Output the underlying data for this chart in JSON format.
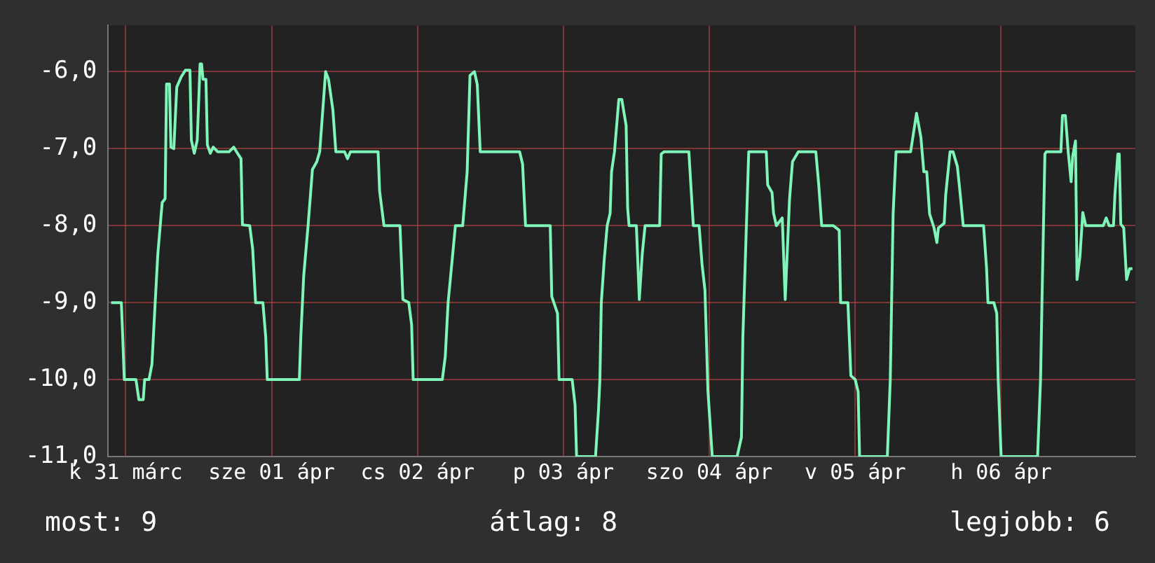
{
  "chart_data": {
    "type": "line",
    "color": "#7ff5b9",
    "marker": "none",
    "line_style": "solid",
    "grid": true,
    "legend": false,
    "x": [
      "--03-30T21:36",
      "--03-30T23:17",
      "--03-30T23:31",
      "--03-30T23:46",
      "--03-31T01:41",
      "--03-31T02:10",
      "--03-31T02:53",
      "--03-31T03:07",
      "--03-31T03:50",
      "--03-31T04:19",
      "--03-31T04:48",
      "--03-31T05:17",
      "--03-31T06:00",
      "--03-31T06:29",
      "--03-31T06:43",
      "--03-31T07:12",
      "--03-31T07:26",
      "--03-31T07:55",
      "--03-31T08:24",
      "--03-31T09:07",
      "--03-31T09:50",
      "--03-31T10:34",
      "--03-31T10:48",
      "--03-31T11:17",
      "--03-31T11:46",
      "--03-31T12:14",
      "--03-31T12:29",
      "--03-31T12:43",
      "--03-31T13:12",
      "--03-31T13:26",
      "--03-31T13:55",
      "--03-31T14:24",
      "--03-31T15:07",
      "--03-31T17:02",
      "--03-31T17:46",
      "--03-31T18:14",
      "--03-31T18:58",
      "--03-31T19:12",
      "--03-31T20:24",
      "--03-31T20:53",
      "--03-31T21:22",
      "--03-31T22:34",
      "--03-31T23:02",
      "--03-31T23:17",
      "--04-01T04:34",
      "--04-01T04:48",
      "--04-01T05:17",
      "--04-01T06:00",
      "--04-01T06:43",
      "--04-01T07:26",
      "--04-01T07:55",
      "--04-01T08:53",
      "--04-01T09:22",
      "--04-01T10:05",
      "--04-01T10:34",
      "--04-01T12:00",
      "--04-01T12:29",
      "--04-01T12:58",
      "--04-01T17:31",
      "--04-01T17:46",
      "--04-01T18:29",
      "--04-01T21:07",
      "--04-01T21:36",
      "--04-01T22:34",
      "--04-01T23:02",
      "--04-01T23:17",
      "--04-02T04:05",
      "--04-02T04:34",
      "--04-02T05:02",
      "--04-02T05:31",
      "--04-02T06:14",
      "--04-02T07:26",
      "--04-02T08:10",
      "--04-02T08:38",
      "--04-02T09:22",
      "--04-02T09:50",
      "--04-02T10:19",
      "--04-02T16:48",
      "--04-02T17:17",
      "--04-02T17:46",
      "--04-02T21:50",
      "--04-02T22:05",
      "--04-02T23:02",
      "--04-02T23:17",
      "--04-03T01:26",
      "--04-03T01:55",
      "--04-03T02:10",
      "--04-03T05:17",
      "--04-03T05:46",
      "--04-03T06:00",
      "--04-03T06:14",
      "--04-03T06:43",
      "--04-03T07:12",
      "--04-03T07:41",
      "--04-03T07:55",
      "--04-03T08:24",
      "--04-03T09:07",
      "--04-03T09:36",
      "--04-03T10:19",
      "--04-03T10:34",
      "--04-03T10:48",
      "--04-03T12:00",
      "--04-03T12:29",
      "--04-03T12:58",
      "--04-03T13:26",
      "--04-03T15:50",
      "--04-03T16:05",
      "--04-03T16:34",
      "--04-03T20:38",
      "--04-03T21:22",
      "--04-03T22:19",
      "--04-03T22:48",
      "--04-03T23:17",
      "--04-03T23:46",
      "--04-04T00:29",
      "--04-04T04:34",
      "--04-04T05:17",
      "--04-04T05:31",
      "--04-04T06:00",
      "--04-04T06:29",
      "--04-04T09:22",
      "--04-04T09:36",
      "--04-04T10:19",
      "--04-04T10:34",
      "--04-04T11:02",
      "--04-04T12:00",
      "--04-04T12:29",
      "--04-04T13:12",
      "--04-04T13:41",
      "--04-04T14:38",
      "--04-04T17:31",
      "--04-04T18:00",
      "--04-04T18:29",
      "--04-04T20:24",
      "--04-04T21:22",
      "--04-04T21:36",
      "--04-04T22:48",
      "--04-04T23:17",
      "--04-05T00:00",
      "--04-05T00:29",
      "--04-05T00:43",
      "--04-05T05:17",
      "--04-05T05:46",
      "--04-05T06:14",
      "--04-05T06:43",
      "--04-05T09:07",
      "--04-05T10:05",
      "--04-05T10:48",
      "--04-05T11:17",
      "--04-05T11:46",
      "--04-05T12:14",
      "--04-05T12:58",
      "--04-05T13:26",
      "--04-05T13:41",
      "--04-05T14:38",
      "--04-05T14:53",
      "--04-05T15:36",
      "--04-05T16:05",
      "--04-05T16:48",
      "--04-05T17:17",
      "--04-05T17:46",
      "--04-05T21:07",
      "--04-05T21:36",
      "--04-05T21:50",
      "--04-05T22:48",
      "--04-05T23:17",
      "--04-05T23:31",
      "--04-06T00:00",
      "--04-06T06:00",
      "--04-06T06:29",
      "--04-06T06:43",
      "--04-06T07:12",
      "--04-06T07:26",
      "--04-06T09:50",
      "--04-06T10:05",
      "--04-06T10:34",
      "--04-06T11:02",
      "--04-06T11:31",
      "--04-06T11:46",
      "--04-06T12:14",
      "--04-06T12:29",
      "--04-06T12:58",
      "--04-06T13:26",
      "--04-06T13:55",
      "--04-06T16:48",
      "--04-06T17:17",
      "--04-06T17:46",
      "--04-06T18:29",
      "--04-06T18:43",
      "--04-06T19:12",
      "--04-06T19:26",
      "--04-06T19:41",
      "--04-06T20:10",
      "--04-06T20:38",
      "--04-06T21:07",
      "--04-06T21:36"
    ],
    "values": [
      -9.0,
      -9.0,
      -9.46,
      -10.0,
      -10.0,
      -10.26,
      -10.26,
      -10.0,
      -10.0,
      -9.8,
      -9.07,
      -8.37,
      -7.7,
      -7.65,
      -6.16,
      -6.16,
      -6.98,
      -7.0,
      -6.2,
      -6.07,
      -5.98,
      -5.98,
      -6.89,
      -7.06,
      -6.89,
      -5.9,
      -5.9,
      -6.1,
      -6.1,
      -6.95,
      -7.06,
      -6.98,
      -7.04,
      -7.04,
      -6.98,
      -7.04,
      -7.13,
      -7.99,
      -8.0,
      -8.3,
      -9.0,
      -9.0,
      -9.45,
      -10.0,
      -10.0,
      -9.45,
      -8.65,
      -8.0,
      -7.27,
      -7.17,
      -7.04,
      -6.0,
      -6.1,
      -6.5,
      -7.04,
      -7.04,
      -7.13,
      -7.04,
      -7.04,
      -7.55,
      -8.0,
      -8.0,
      -8.96,
      -9.0,
      -9.29,
      -10.0,
      -10.0,
      -9.7,
      -9.0,
      -8.6,
      -8.0,
      -8.0,
      -7.3,
      -6.05,
      -6.0,
      -6.17,
      -7.04,
      -7.04,
      -7.2,
      -8.0,
      -8.0,
      -8.92,
      -9.14,
      -10.0,
      -10.0,
      -10.33,
      -11.0,
      -11.0,
      -10.4,
      -10.0,
      -9.0,
      -8.44,
      -8.0,
      -7.84,
      -7.3,
      -7.04,
      -6.36,
      -6.36,
      -6.7,
      -7.77,
      -8.0,
      -8.0,
      -8.96,
      -8.37,
      -8.0,
      -8.0,
      -7.07,
      -7.04,
      -7.04,
      -8.0,
      -8.0,
      -8.5,
      -8.84,
      -10.14,
      -11.0,
      -11.0,
      -10.75,
      -9.45,
      -8.25,
      -7.04,
      -7.04,
      -7.47,
      -7.57,
      -7.84,
      -8.0,
      -7.9,
      -8.96,
      -7.65,
      -7.17,
      -7.04,
      -7.04,
      -7.47,
      -8.0,
      -8.0,
      -8.06,
      -9.0,
      -9.0,
      -9.95,
      -10.0,
      -10.16,
      -11.0,
      -11.0,
      -10.0,
      -7.85,
      -7.04,
      -7.04,
      -6.54,
      -6.85,
      -7.3,
      -7.3,
      -7.85,
      -8.03,
      -8.22,
      -8.03,
      -7.97,
      -7.6,
      -7.04,
      -7.04,
      -7.23,
      -7.6,
      -8.0,
      -8.0,
      -8.55,
      -9.0,
      -9.0,
      -9.14,
      -10.0,
      -11.0,
      -11.0,
      -10.0,
      -9.0,
      -7.07,
      -7.04,
      -7.04,
      -6.57,
      -6.57,
      -7.04,
      -7.43,
      -7.1,
      -6.9,
      -8.7,
      -8.4,
      -7.83,
      -8.0,
      -8.0,
      -7.9,
      -8.0,
      -8.0,
      -7.6,
      -7.07,
      -7.07,
      -7.98,
      -8.03,
      -8.7,
      -8.56,
      -8.56
    ],
    "xlim": [
      "--03-30T21:07",
      "--04-06T22:05"
    ],
    "xticks": [
      {
        "value": "--03-31",
        "label": "k 31 márc"
      },
      {
        "value": "--04-01",
        "label": "sze 01 ápr"
      },
      {
        "value": "--04-02",
        "label": "cs 02 ápr"
      },
      {
        "value": "--04-03",
        "label": "p 03 ápr"
      },
      {
        "value": "--04-04",
        "label": "szo 04 ápr"
      },
      {
        "value": "--04-05",
        "label": "v 05 ápr"
      },
      {
        "value": "--04-06",
        "label": "h 06 ápr"
      }
    ],
    "ylim": [
      -11,
      -5.4
    ],
    "yticks": [
      {
        "value": -6,
        "label": "-6,0"
      },
      {
        "value": -7,
        "label": "-7,0"
      },
      {
        "value": -8,
        "label": "-8,0"
      },
      {
        "value": -9,
        "label": "-9,0"
      },
      {
        "value": -10,
        "label": "-10,0"
      },
      {
        "value": -11,
        "label": "-11,0"
      }
    ],
    "annotations": [
      "most: 9",
      "átlag: 8",
      "legjobb: 6"
    ]
  }
}
